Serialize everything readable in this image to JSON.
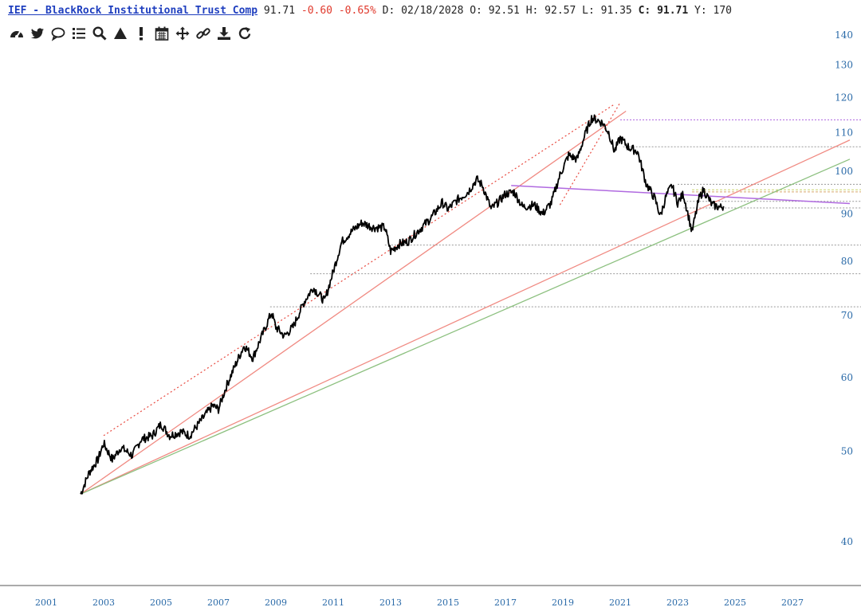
{
  "header": {
    "title": "IEF - BlackRock Institutional Trust Comp",
    "last": "91.71",
    "change": "-0.60",
    "change_pct": "-0.65%",
    "date_label": "D:",
    "date": "02/18/2028",
    "open_label": "O:",
    "open": "92.51",
    "high_label": "H:",
    "high": "92.57",
    "low_label": "L:",
    "low": "91.35",
    "close_label": "C:",
    "close": "91.71",
    "y_label": "Y:",
    "y_value": "170"
  },
  "toolbar": {
    "icons": [
      "dashboard-icon",
      "twitter-icon",
      "comment-icon",
      "list-icon",
      "search-icon",
      "triangle-icon",
      "exclamation-icon",
      "calendar-icon",
      "move-icon",
      "link-icon",
      "download-icon",
      "refresh-icon"
    ]
  },
  "colors": {
    "price": "#000000",
    "red_trend": "#f08a82",
    "red_dotted": "#e8493f",
    "green_trend": "#8cc07f",
    "purple": "#b06ae0",
    "grey_level": "#999999",
    "axis_text": "#2a6aa8"
  },
  "chart_data": {
    "type": "line",
    "title": "IEF - BlackRock Institutional Trust Comp",
    "yscale": "log",
    "xlim": [
      2000.6,
      2029.0
    ],
    "ylim": [
      36,
      150
    ],
    "x_ticks": [
      2001,
      2003,
      2005,
      2007,
      2009,
      2011,
      2013,
      2015,
      2017,
      2019,
      2021,
      2023,
      2025,
      2027
    ],
    "x_tick_labels": [
      "2001",
      "2003",
      "2005",
      "2007",
      "2009",
      "2011",
      "2013",
      "2015",
      "2017",
      "2019",
      "2021",
      "2023",
      "2025",
      "2027"
    ],
    "y_ticks": [
      40,
      50,
      60,
      70,
      80,
      90,
      100,
      110,
      120,
      130,
      140
    ],
    "y_tick_labels": [
      "40",
      "50",
      "60",
      "70",
      "80",
      "90",
      "100",
      "110",
      "120",
      "130",
      "140"
    ],
    "series": [
      {
        "x": [
          2002.2,
          2002.5,
          2002.8,
          2003.0,
          2003.3,
          2003.6,
          2004.0,
          2004.3,
          2004.7,
          2005.0,
          2005.3,
          2005.7,
          2006.0,
          2006.4,
          2006.8,
          2007.0,
          2007.3,
          2007.6,
          2007.9,
          2008.2,
          2008.6,
          2008.85,
          2009.0,
          2009.3,
          2009.6,
          2010.0,
          2010.3,
          2010.7,
          2011.0,
          2011.3,
          2011.7,
          2012.0,
          2012.4,
          2012.8,
          2013.0,
          2013.3,
          2013.6,
          2014.0,
          2014.4,
          2014.8,
          2015.0,
          2015.3,
          2015.7,
          2016.0,
          2016.2,
          2016.5,
          2016.8,
          2017.0,
          2017.3,
          2017.6,
          2018.0,
          2018.3,
          2018.6,
          2018.9,
          2019.2,
          2019.5,
          2019.8,
          2020.0,
          2020.2,
          2020.4,
          2020.6,
          2020.8,
          2021.0,
          2021.3,
          2021.6,
          2021.9,
          2022.2,
          2022.4,
          2022.6,
          2022.8,
          2023.0,
          2023.2,
          2023.5,
          2023.75,
          2023.9,
          2024.2,
          2024.5,
          2024.6
        ],
        "values": [
          45.0,
          47.5,
          49.0,
          51.0,
          49.0,
          50.5,
          49.5,
          51.5,
          52.0,
          53.5,
          52.0,
          52.5,
          52.0,
          54.0,
          56.0,
          55.5,
          59.0,
          62.0,
          65.0,
          63.0,
          67.5,
          70.5,
          68.0,
          66.5,
          68.0,
          72.5,
          75.0,
          72.5,
          78.0,
          84.0,
          86.5,
          88.0,
          87.0,
          87.0,
          82.0,
          83.5,
          84.0,
          86.5,
          89.0,
          92.5,
          91.0,
          93.0,
          95.0,
          98.0,
          96.5,
          91.0,
          93.0,
          94.5,
          95.0,
          91.5,
          92.0,
          90.0,
          92.5,
          99.0,
          104.0,
          103.0,
          110.0,
          114.0,
          113.5,
          112.5,
          110.0,
          105.0,
          108.5,
          106.0,
          105.0,
          97.0,
          93.5,
          89.5,
          94.0,
          96.5,
          92.5,
          94.5,
          86.0,
          93.5,
          95.5,
          92.0,
          91.4,
          91.71
        ]
      }
    ]
  }
}
